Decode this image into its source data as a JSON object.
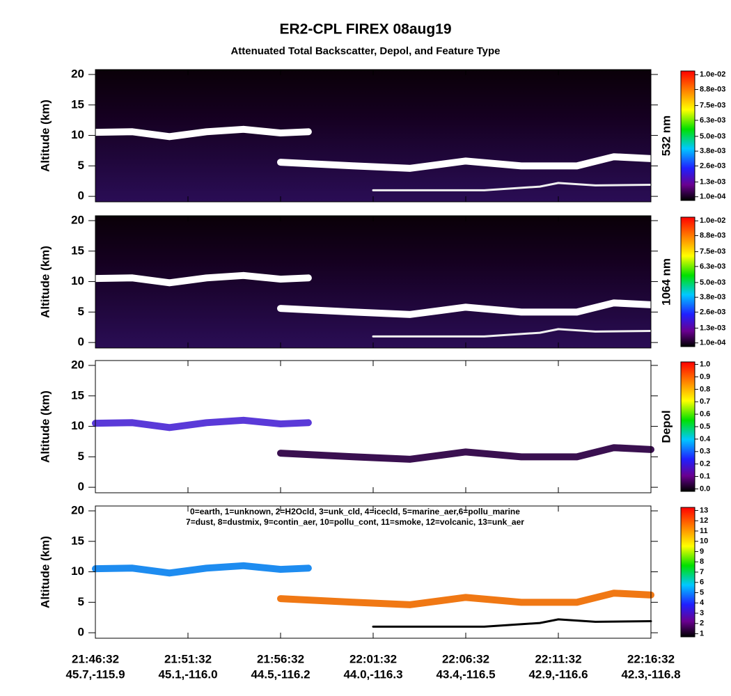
{
  "title": "ER2-CPL FIREX 08aug19",
  "subtitle": "Attenuated Total Backscatter, Depol, and Feature Type",
  "xlim": [
    0,
    30
  ],
  "xticks": [
    {
      "value": 0,
      "label": "21:46:32"
    },
    {
      "value": 5,
      "label": "21:51:32"
    },
    {
      "value": 10,
      "label": "21:56:32"
    },
    {
      "value": 15,
      "label": "22:01:32"
    },
    {
      "value": 20,
      "label": "22:06:32"
    },
    {
      "value": 25,
      "label": "22:11:32"
    },
    {
      "value": 30,
      "label": "22:16:32"
    }
  ],
  "xtick_positions": [
    "45.7,-115.9",
    "45.1,-116.0",
    "44.5,-116.2",
    "44.0,-116.3",
    "43.4,-116.5",
    "42.9,-116.6",
    "42.3,-116.8"
  ],
  "chart_data": [
    {
      "type": "curtain",
      "ylabel": "Altitude (km)",
      "ylim": [
        -0.9,
        20.8
      ],
      "yticks": [
        0,
        5,
        10,
        15,
        20
      ],
      "colorbar_label": "532 nm",
      "clim": [
        -0.0002,
        0.0103
      ],
      "cticks": [
        {
          "value": 0.0001,
          "label": "1.0e-04"
        },
        {
          "value": 0.0013,
          "label": "1.3e-03"
        },
        {
          "value": 0.0026,
          "label": "2.6e-03"
        },
        {
          "value": 0.0038,
          "label": "3.8e-03"
        },
        {
          "value": 0.005,
          "label": "5.0e-03"
        },
        {
          "value": 0.0063,
          "label": "6.3e-03"
        },
        {
          "value": 0.0075,
          "label": "7.5e-03"
        },
        {
          "value": 0.0088,
          "label": "8.8e-03"
        },
        {
          "value": 0.01,
          "label": "1.0e-02"
        }
      ],
      "series": [
        {
          "color": "#ffffff",
          "x": [
            0,
            2,
            4,
            6,
            8,
            10,
            11.5
          ],
          "values": [
            10.5,
            10.6,
            9.8,
            10.6,
            11,
            10.4,
            10.6
          ]
        },
        {
          "color": "#ffffff",
          "x": [
            10,
            14,
            17,
            20,
            23,
            26,
            28,
            30
          ],
          "values": [
            5.6,
            5,
            4.6,
            5.8,
            5,
            5,
            6.5,
            6.2
          ]
        },
        {
          "color": "#f0f0f0",
          "x": [
            15,
            18,
            21,
            24,
            25,
            27,
            30
          ],
          "values": [
            1,
            1,
            1,
            1.6,
            2.2,
            1.8,
            1.9
          ]
        }
      ]
    },
    {
      "type": "curtain",
      "ylabel": "Altitude (km)",
      "ylim": [
        -0.9,
        20.8
      ],
      "yticks": [
        0,
        5,
        10,
        15,
        20
      ],
      "colorbar_label": "1064 nm",
      "clim": [
        -0.0002,
        0.0103
      ],
      "cticks": [
        {
          "value": 0.0001,
          "label": "1.0e-04"
        },
        {
          "value": 0.0013,
          "label": "1.3e-03"
        },
        {
          "value": 0.0026,
          "label": "2.6e-03"
        },
        {
          "value": 0.0038,
          "label": "3.8e-03"
        },
        {
          "value": 0.005,
          "label": "5.0e-03"
        },
        {
          "value": 0.0063,
          "label": "6.3e-03"
        },
        {
          "value": 0.0075,
          "label": "7.5e-03"
        },
        {
          "value": 0.0088,
          "label": "8.8e-03"
        },
        {
          "value": 0.01,
          "label": "1.0e-02"
        }
      ],
      "series": [
        {
          "color": "#ffffff",
          "x": [
            0,
            2,
            4,
            6,
            8,
            10,
            11.5
          ],
          "values": [
            10.5,
            10.6,
            9.8,
            10.6,
            11,
            10.4,
            10.6
          ]
        },
        {
          "color": "#ffffff",
          "x": [
            10,
            14,
            17,
            20,
            23,
            26,
            28,
            30
          ],
          "values": [
            5.6,
            5,
            4.6,
            5.8,
            5,
            5,
            6.5,
            6.2
          ]
        },
        {
          "color": "#f0f0f0",
          "x": [
            15,
            18,
            21,
            24,
            25,
            27,
            30
          ],
          "values": [
            1,
            1,
            1,
            1.6,
            2.2,
            1.8,
            1.9
          ]
        }
      ]
    },
    {
      "type": "curtain",
      "ylabel": "Altitude (km)",
      "ylim": [
        -0.9,
        20.8
      ],
      "yticks": [
        0,
        5,
        10,
        15,
        20
      ],
      "colorbar_label": "Depol",
      "clim": [
        -0.02,
        1.02
      ],
      "cticks": [
        {
          "value": 0,
          "label": "0.0"
        },
        0.1,
        0.2,
        0.3,
        0.4,
        0.5,
        0.6,
        0.7,
        0.8,
        0.9,
        {
          "value": 1,
          "label": "1.0"
        }
      ],
      "series": [
        {
          "color": "#5a3ad8",
          "x": [
            0,
            2,
            4,
            6,
            8,
            10,
            11.5
          ],
          "values": [
            10.5,
            10.6,
            9.8,
            10.6,
            11,
            10.4,
            10.6
          ]
        },
        {
          "color": "#3a1050",
          "x": [
            10,
            14,
            17,
            20,
            23,
            26,
            28,
            30
          ],
          "values": [
            5.6,
            5,
            4.6,
            5.8,
            5,
            5,
            6.5,
            6.2
          ]
        }
      ]
    },
    {
      "type": "curtain",
      "ylabel": "Altitude (km)",
      "ylim": [
        -0.9,
        20.8
      ],
      "yticks": [
        0,
        5,
        10,
        15,
        20
      ],
      "clim": [
        0.7,
        13.3
      ],
      "cticks": [
        1,
        2,
        3,
        4,
        5,
        6,
        7,
        8,
        9,
        10,
        11,
        12,
        13
      ],
      "annotations": [
        "0=earth, 1=unknown, 2=H2Ocld, 3=unk_cld, 4=icecld, 5=marine_aer,6=pollu_marine",
        "7=dust, 8=dustmix, 9=contin_aer, 10=pollu_cont, 11=smoke, 12=volcanic, 13=unk_aer"
      ],
      "series": [
        {
          "color": "#1e8cf0",
          "x": [
            0,
            2,
            4,
            6,
            8,
            10,
            11.5
          ],
          "values": [
            10.5,
            10.6,
            9.8,
            10.6,
            11,
            10.4,
            10.6
          ]
        },
        {
          "color": "#f07814",
          "x": [
            10,
            14,
            17,
            20,
            23,
            26,
            28,
            30
          ],
          "values": [
            5.6,
            5,
            4.6,
            5.8,
            5,
            5,
            6.5,
            6.2
          ]
        },
        {
          "color": "#000000",
          "x": [
            15,
            18,
            21,
            24,
            25,
            27,
            30
          ],
          "values": [
            1,
            1,
            1,
            1.6,
            2.2,
            1.8,
            1.9
          ]
        }
      ]
    }
  ]
}
